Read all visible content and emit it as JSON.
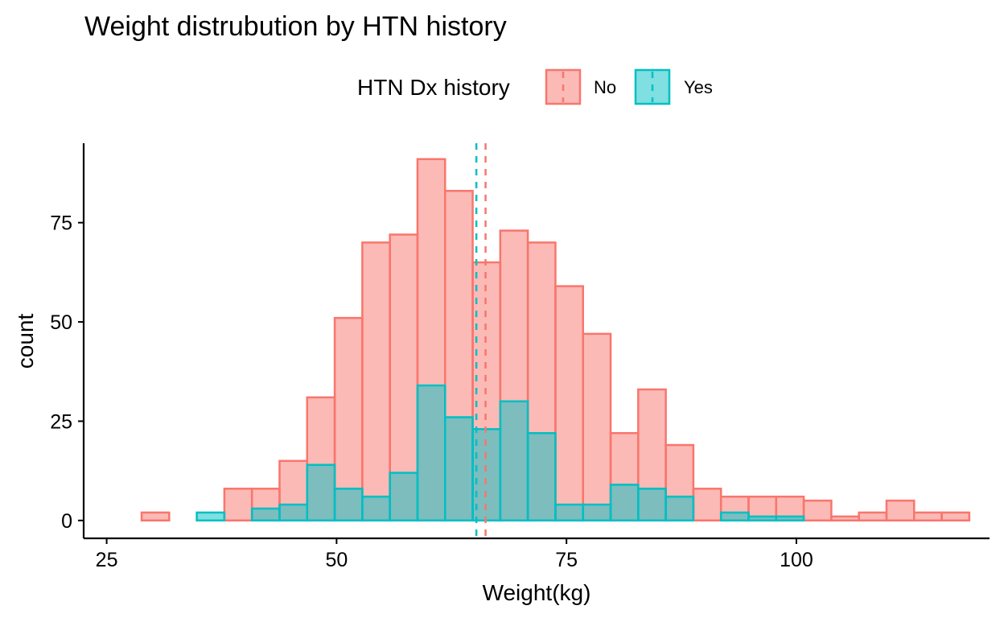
{
  "chart_data": {
    "type": "histogram",
    "title": "Weight distrubution by HTN history",
    "xlabel": "Weight(kg)",
    "ylabel": "count",
    "xlim": [
      22.5,
      121
    ],
    "ylim": [
      -4.5,
      95
    ],
    "x_ticks": [
      25,
      50,
      75,
      100
    ],
    "y_ticks": [
      0,
      25,
      50,
      75
    ],
    "grid": false,
    "legend": {
      "title": "HTN Dx history",
      "position": "top",
      "entries": [
        "No",
        "Yes"
      ]
    },
    "bin_width": 3,
    "bin_start": 28.8,
    "series": [
      {
        "name": "No",
        "fill": "#F8766D",
        "stroke": "#F8766D",
        "mean": 66.2,
        "counts": [
          2,
          0,
          0,
          8,
          8,
          15,
          31,
          51,
          70,
          72,
          91,
          83,
          65,
          73,
          70,
          59,
          47,
          22,
          33,
          19,
          8,
          6,
          6,
          6,
          5,
          1,
          2,
          5,
          2,
          2
        ]
      },
      {
        "name": "Yes",
        "fill": "#00BFC4",
        "stroke": "#00BFC4",
        "mean": 65.2,
        "counts": [
          0,
          0,
          2,
          0,
          3,
          4,
          14,
          8,
          6,
          12,
          34,
          26,
          23,
          30,
          22,
          4,
          4,
          9,
          8,
          6,
          0,
          2,
          1,
          1,
          0,
          0,
          0,
          0,
          0,
          0
        ]
      }
    ]
  }
}
